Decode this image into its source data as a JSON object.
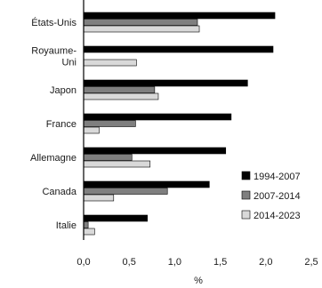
{
  "chart_data": {
    "type": "bar",
    "orientation": "horizontal",
    "title": "",
    "xlabel": "%",
    "ylabel": "",
    "xlim": [
      0,
      2.5
    ],
    "x_ticks": [
      "0,0",
      "0,5",
      "1,0",
      "1,5",
      "2,0",
      "2,5"
    ],
    "grid": false,
    "legend_position": "bottom-right",
    "categories": [
      [
        "États-Unis"
      ],
      [
        "Royaume-",
        "Uni"
      ],
      [
        "Japon"
      ],
      [
        "France"
      ],
      [
        "Allemagne"
      ],
      [
        "Canada"
      ],
      [
        "Italie"
      ]
    ],
    "series": [
      {
        "name": "1994-2007",
        "color": "#000000",
        "values": [
          2.1,
          2.08,
          1.8,
          1.62,
          1.56,
          1.38,
          0.7
        ]
      },
      {
        "name": "2007-2014",
        "color": "#7f7f7f",
        "values": [
          1.25,
          0.0,
          0.78,
          0.57,
          0.53,
          0.92,
          0.05
        ]
      },
      {
        "name": "2014-2023",
        "color": "#d9d9d9",
        "values": [
          1.27,
          0.58,
          0.82,
          0.17,
          0.73,
          0.33,
          0.12
        ]
      }
    ]
  }
}
